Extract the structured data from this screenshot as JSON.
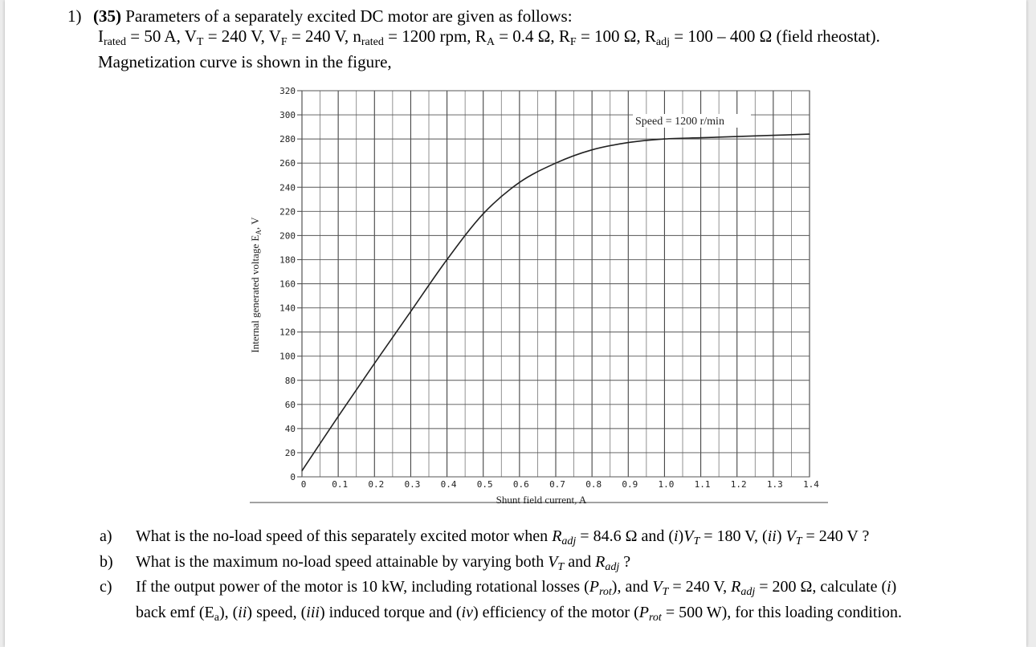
{
  "problem": {
    "number": "1)",
    "points": "(35)",
    "intro": " Parameters of a separately excited DC motor are given as follows:",
    "params": "I",
    "params_sub": "rated",
    "params_rest": " = 50 A, V",
    "vt_sub": "T",
    "vt_rest": " = 240 V, V",
    "vf_sub": "F",
    "vf_rest": " = 240 V, n",
    "n_sub": "rated",
    "n_rest": " = 1200 rpm, R",
    "ra_sub": "A",
    "ra_rest": " = 0.4 Ω, R",
    "rf_sub": "F",
    "rf_rest": " = 100 Ω, R",
    "radj_sub": "adj",
    "radj_rest": " = 100 – 400 Ω (field rheostat).",
    "curve_note": "Magnetization curve is shown in the figure,"
  },
  "chart_data": {
    "type": "line",
    "title": "",
    "annotation": "Speed = 1200 r/min",
    "xlabel": "Shunt field current, A",
    "ylabel": "Internal generated voltage E",
    "ylabel_sub": "A",
    "ylabel_unit": ", V",
    "xlim": [
      0,
      1.4
    ],
    "ylim": [
      0,
      320
    ],
    "x_ticks": [
      "0",
      "0.1",
      "0.2",
      "0.3",
      "0.4",
      "0.5",
      "0.6",
      "0.7",
      "0.8",
      "0.9",
      "1.0",
      "1.1",
      "1.2",
      "1.3",
      "1.4"
    ],
    "y_ticks": [
      "0",
      "20",
      "40",
      "60",
      "80",
      "100",
      "120",
      "140",
      "160",
      "180",
      "200",
      "220",
      "240",
      "260",
      "280",
      "300",
      "320"
    ],
    "grid": true,
    "series": [
      {
        "x": [
          0,
          0.1,
          0.2,
          0.3,
          0.4,
          0.5,
          0.6,
          0.7,
          0.8,
          0.9,
          1.0,
          1.1,
          1.2,
          1.3,
          1.4
        ],
        "y": [
          5,
          50,
          94,
          137,
          180,
          218,
          244,
          260,
          271,
          277,
          280,
          281,
          282,
          283,
          284
        ]
      }
    ]
  },
  "questions": [
    {
      "letter": "a)",
      "t1": "What is the no-load speed of this separately excited motor when ",
      "i1": "R",
      "s1": "adj",
      "t2": " = 84.6 Ω and (",
      "i2": "i",
      "t3": ")",
      "i3": "V",
      "s3": "T",
      "t4": " = 180 V, (",
      "i4": "ii",
      "t5": ") ",
      "i5": "V",
      "s5": "T",
      "t6": " = 240 V ?"
    },
    {
      "letter": "b)",
      "t1": "What is the maximum no-load speed attainable by varying both ",
      "i1": "V",
      "s1": "T",
      "t2": " and ",
      "i2": "R",
      "s2": "adj",
      "t3": " ?"
    },
    {
      "letter": "c)",
      "t1": "If the output power of the motor is 10 kW, including rotational losses (",
      "i1": "P",
      "s1": "rot",
      "t2": "), and ",
      "i2": "V",
      "s2": "T",
      "t3": " = 240 V, ",
      "i3": "R",
      "s3": "adj",
      "t4": " = 200 Ω, calculate (",
      "i4": "i",
      "t5": ")",
      "line2_t1": "back emf (E",
      "line2_s1": "a",
      "line2_t2": "), (",
      "line2_i2": "ii",
      "line2_t3": ") speed, (",
      "line2_i3": "iii",
      "line2_t4": ") induced torque and (",
      "line2_i4": "iv",
      "line2_t5": ") efficiency of the motor (",
      "line2_i5": "P",
      "line2_s5": "rot",
      "line2_t6": " = 500 W), for this loading condition."
    }
  ]
}
